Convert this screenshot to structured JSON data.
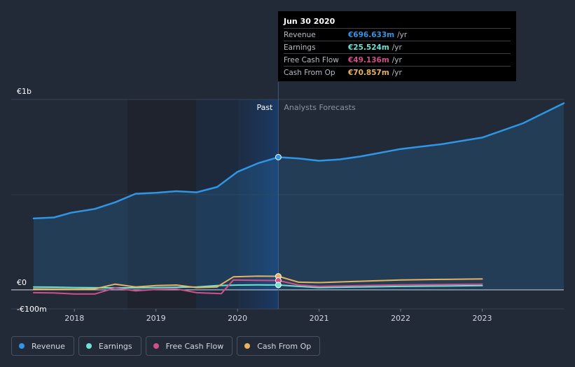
{
  "tooltip": {
    "date": "Jun 30 2020",
    "rows": [
      {
        "label": "Revenue",
        "value": "€696.633m",
        "unit": "/yr",
        "color": "#2f96e6"
      },
      {
        "label": "Earnings",
        "value": "€25.524m",
        "unit": "/yr",
        "color": "#6ce3d5"
      },
      {
        "label": "Free Cash Flow",
        "value": "€49.136m",
        "unit": "/yr",
        "color": "#d24f8a"
      },
      {
        "label": "Cash From Op",
        "value": "€70.857m",
        "unit": "/yr",
        "color": "#e8b25e"
      }
    ]
  },
  "legend": [
    {
      "label": "Revenue",
      "color": "#2f96e6"
    },
    {
      "label": "Earnings",
      "color": "#6ce3d5"
    },
    {
      "label": "Free Cash Flow",
      "color": "#d24f8a"
    },
    {
      "label": "Cash From Op",
      "color": "#e8b25e"
    }
  ],
  "chart_data": {
    "type": "line",
    "unit": "€m",
    "y_labels": [
      {
        "text": "€1b",
        "value": 1000
      },
      {
        "text": "€0",
        "value": 0
      },
      {
        "text": "-€100m",
        "value": -100
      }
    ],
    "ylim": [
      -100,
      1000
    ],
    "xlim": [
      2017.5,
      2024.0
    ],
    "x_ticks": [
      {
        "text": "2018",
        "value": 2018
      },
      {
        "text": "2019",
        "value": 2019
      },
      {
        "text": "2020",
        "value": 2020
      },
      {
        "text": "2021",
        "value": 2021
      },
      {
        "text": "2022",
        "value": 2022
      },
      {
        "text": "2023",
        "value": 2023
      }
    ],
    "present": 2020.5,
    "past_label": "Past",
    "forecast_label": "Analysts Forecasts",
    "series": [
      {
        "name": "Revenue",
        "color": "#2f96e6",
        "area": true,
        "points": [
          [
            2017.5,
            375
          ],
          [
            2017.75,
            380
          ],
          [
            2017.96,
            405
          ],
          [
            2018.25,
            425
          ],
          [
            2018.5,
            460
          ],
          [
            2018.75,
            505
          ],
          [
            2019.0,
            510
          ],
          [
            2019.25,
            518
          ],
          [
            2019.5,
            512
          ],
          [
            2019.75,
            540
          ],
          [
            2020.0,
            620
          ],
          [
            2020.25,
            665
          ],
          [
            2020.5,
            697
          ],
          [
            2020.75,
            690
          ],
          [
            2021.0,
            678
          ],
          [
            2021.25,
            685
          ],
          [
            2021.5,
            700
          ],
          [
            2021.75,
            720
          ],
          [
            2022.0,
            740
          ],
          [
            2022.5,
            765
          ],
          [
            2023.0,
            800
          ],
          [
            2023.5,
            875
          ],
          [
            2024.0,
            980
          ]
        ]
      },
      {
        "name": "Earnings",
        "color": "#6ce3d5",
        "area": false,
        "points": [
          [
            2017.5,
            15
          ],
          [
            2017.75,
            14
          ],
          [
            2018.0,
            12
          ],
          [
            2018.5,
            10
          ],
          [
            2019.0,
            12
          ],
          [
            2019.5,
            15
          ],
          [
            2019.75,
            22
          ],
          [
            2020.0,
            25
          ],
          [
            2020.25,
            26
          ],
          [
            2020.5,
            25.5
          ],
          [
            2020.75,
            18
          ],
          [
            2021.0,
            12
          ],
          [
            2021.5,
            15
          ],
          [
            2022.0,
            18
          ],
          [
            2022.5,
            20
          ],
          [
            2023.0,
            22
          ]
        ]
      },
      {
        "name": "Free Cash Flow",
        "color": "#d24f8a",
        "area": false,
        "points": [
          [
            2017.5,
            -15
          ],
          [
            2017.75,
            -16
          ],
          [
            2018.0,
            -22
          ],
          [
            2018.25,
            -22
          ],
          [
            2018.5,
            10
          ],
          [
            2018.75,
            -5
          ],
          [
            2019.0,
            2
          ],
          [
            2019.25,
            5
          ],
          [
            2019.5,
            -15
          ],
          [
            2019.8,
            -20
          ],
          [
            2019.95,
            52
          ],
          [
            2020.25,
            50
          ],
          [
            2020.5,
            49
          ],
          [
            2020.75,
            25
          ],
          [
            2021.0,
            18
          ],
          [
            2021.5,
            22
          ],
          [
            2022.0,
            26
          ],
          [
            2022.5,
            28
          ],
          [
            2023.0,
            30
          ]
        ]
      },
      {
        "name": "Cash From Op",
        "color": "#e8b25e",
        "area": false,
        "points": [
          [
            2017.5,
            5
          ],
          [
            2017.75,
            4
          ],
          [
            2018.0,
            3
          ],
          [
            2018.25,
            5
          ],
          [
            2018.5,
            30
          ],
          [
            2018.75,
            15
          ],
          [
            2019.0,
            22
          ],
          [
            2019.25,
            25
          ],
          [
            2019.5,
            12
          ],
          [
            2019.75,
            15
          ],
          [
            2019.95,
            68
          ],
          [
            2020.25,
            72
          ],
          [
            2020.5,
            71
          ],
          [
            2020.75,
            40
          ],
          [
            2021.0,
            38
          ],
          [
            2021.5,
            45
          ],
          [
            2022.0,
            52
          ],
          [
            2022.5,
            55
          ],
          [
            2023.0,
            57
          ]
        ]
      }
    ]
  }
}
